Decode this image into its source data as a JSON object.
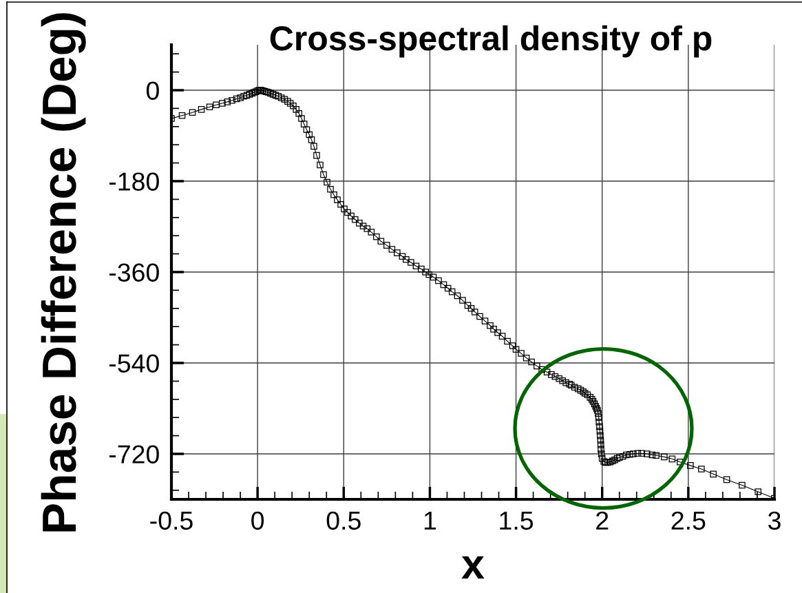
{
  "chart_data": {
    "type": "line",
    "title": "Cross-spectral density of p",
    "xlabel": "x",
    "ylabel": "Phase Difference (Deg)",
    "x": [
      -0.5,
      -0.438,
      -0.378,
      -0.326,
      -0.278,
      -0.24,
      -0.205,
      -0.175,
      -0.148,
      -0.122,
      -0.1,
      -0.08,
      -0.062,
      -0.046,
      -0.032,
      -0.02,
      -0.01,
      0,
      0.01,
      0.02,
      0.03,
      0.04,
      0.05,
      0.062,
      0.075,
      0.09,
      0.105,
      0.12,
      0.138,
      0.157,
      0.175,
      0.19,
      0.207,
      0.224,
      0.24,
      0.255,
      0.27,
      0.285,
      0.3,
      0.313,
      0.327,
      0.343,
      0.363,
      0.383,
      0.403,
      0.423,
      0.443,
      0.463,
      0.483,
      0.503,
      0.523,
      0.543,
      0.566,
      0.59,
      0.613,
      0.636,
      0.66,
      0.69,
      0.716,
      0.75,
      0.78,
      0.81,
      0.84,
      0.862,
      0.89,
      0.92,
      0.95,
      0.975,
      0.995,
      1.02,
      1.05,
      1.08,
      1.105,
      1.129,
      1.16,
      1.19,
      1.22,
      1.24,
      1.261,
      1.29,
      1.32,
      1.35,
      1.37,
      1.394,
      1.42,
      1.45,
      1.48,
      1.5,
      1.53,
      1.56,
      1.59,
      1.621,
      1.65,
      1.68,
      1.705,
      1.727,
      1.75,
      1.77,
      1.79,
      1.81,
      1.82,
      1.84,
      1.86,
      1.875,
      1.89,
      1.9,
      1.915,
      1.93,
      1.94,
      1.947,
      1.955,
      1.962,
      1.968,
      1.973,
      1.977,
      1.98,
      1.982,
      1.985,
      1.987,
      1.989,
      1.991,
      1.992,
      1.993,
      1.996,
      2.0,
      2.01,
      2.02,
      2.033,
      2.047,
      2.06,
      2.073,
      2.087,
      2.1,
      2.12,
      2.14,
      2.16,
      2.18,
      2.206,
      2.23,
      2.26,
      2.29,
      2.313,
      2.36,
      2.406,
      2.452,
      2.512,
      2.576,
      2.645,
      2.723,
      2.812,
      2.905,
      3.0
    ],
    "series": [
      {
        "color": "#000000",
        "values": [
          -56,
          -50,
          -44,
          -38,
          -33,
          -29,
          -26,
          -23,
          -20,
          -17,
          -15,
          -12,
          -10,
          -8,
          -6,
          -4,
          -3,
          -1,
          0,
          0,
          -1,
          -2,
          -3,
          -4,
          -6,
          -8,
          -10,
          -12,
          -15,
          -18,
          -22,
          -26,
          -31,
          -38,
          -46,
          -56,
          -67,
          -78,
          -88,
          -98,
          -111,
          -129,
          -148,
          -167,
          -182,
          -196,
          -207,
          -217,
          -226,
          -235,
          -242,
          -249,
          -256,
          -263,
          -269,
          -274,
          -281,
          -290,
          -299,
          -307,
          -315,
          -322,
          -329,
          -335,
          -341,
          -348,
          -354,
          -360,
          -365,
          -370,
          -377,
          -385,
          -392,
          -399,
          -407,
          -416,
          -426,
          -432,
          -439,
          -448,
          -457,
          -466,
          -473,
          -480,
          -487,
          -497,
          -506,
          -513,
          -521,
          -530,
          -538,
          -546,
          -553,
          -558,
          -563,
          -567,
          -571,
          -575,
          -579,
          -582,
          -584,
          -588,
          -591,
          -594,
          -597,
          -600,
          -603,
          -608,
          -612,
          -616,
          -621,
          -626,
          -630,
          -634,
          -640,
          -648,
          -657,
          -666,
          -675,
          -684,
          -693,
          -702,
          -711,
          -720,
          -729,
          -735,
          -737,
          -737,
          -736,
          -734,
          -732,
          -729,
          -727,
          -725,
          -722,
          -721,
          -720,
          -719,
          -719,
          -720,
          -722,
          -723,
          -726,
          -730,
          -736,
          -743,
          -750,
          -760,
          -771,
          -782,
          -795,
          -808
        ]
      }
    ],
    "marker": "square",
    "line_style": "solid",
    "grid": true,
    "xlim": [
      -0.5,
      3
    ],
    "ylim": [
      -810,
      90
    ],
    "xticks": [
      -0.5,
      {
        "value": -0.4,
        "label": null
      },
      {
        "value": -0.3,
        "label": null
      },
      {
        "value": -0.2,
        "label": null
      },
      {
        "value": -0.1,
        "label": null
      },
      0,
      {
        "value": 0.1,
        "label": null
      },
      {
        "value": 0.2,
        "label": null
      },
      {
        "value": 0.3,
        "label": null
      },
      {
        "value": 0.4,
        "label": null
      },
      0.5,
      {
        "value": 0.6,
        "label": null
      },
      {
        "value": 0.7,
        "label": null
      },
      {
        "value": 0.8,
        "label": null
      },
      {
        "value": 0.9,
        "label": null
      },
      1,
      {
        "value": 1.1,
        "label": null
      },
      {
        "value": 1.2,
        "label": null
      },
      {
        "value": 1.3,
        "label": null
      },
      {
        "value": 1.4,
        "label": null
      },
      1.5,
      {
        "value": 1.6,
        "label": null
      },
      {
        "value": 1.7,
        "label": null
      },
      {
        "value": 1.8,
        "label": null
      },
      {
        "value": 1.9,
        "label": null
      },
      2,
      {
        "value": 2.1,
        "label": null
      },
      {
        "value": 2.2,
        "label": null
      },
      {
        "value": 2.3,
        "label": null
      },
      {
        "value": 2.4,
        "label": null
      },
      2.5,
      {
        "value": 2.6,
        "label": null
      },
      {
        "value": 2.7,
        "label": null
      },
      {
        "value": 2.8,
        "label": null
      },
      {
        "value": 2.9,
        "label": null
      },
      3
    ],
    "yticks": [
      {
        "value": 72,
        "label": null
      },
      {
        "value": 36,
        "label": null
      },
      0,
      {
        "value": -36,
        "label": null
      },
      {
        "value": -72,
        "label": null
      },
      {
        "value": -108,
        "label": null
      },
      {
        "value": -144,
        "label": null
      },
      -180,
      {
        "value": -216,
        "label": null
      },
      {
        "value": -252,
        "label": null
      },
      {
        "value": -288,
        "label": null
      },
      {
        "value": -324,
        "label": null
      },
      -360,
      {
        "value": -396,
        "label": null
      },
      {
        "value": -432,
        "label": null
      },
      {
        "value": -468,
        "label": null
      },
      {
        "value": -504,
        "label": null
      },
      -540,
      {
        "value": -576,
        "label": null
      },
      {
        "value": -612,
        "label": null
      },
      {
        "value": -648,
        "label": null
      },
      {
        "value": -684,
        "label": null
      },
      -720,
      {
        "value": -756,
        "label": null
      },
      {
        "value": -792,
        "label": null
      }
    ]
  }
}
